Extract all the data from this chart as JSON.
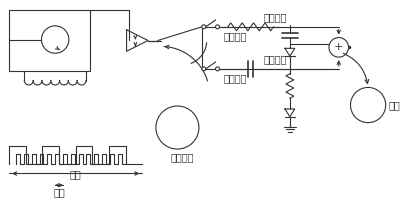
{
  "line_color": "#333333",
  "labels": {
    "low_freq": "低频",
    "high_freq": "高频",
    "low_sample": "低频采样",
    "high_sample": "高频采样",
    "fluid_noise": "流体噪声",
    "integral": "积分电路",
    "diff": "微分电路",
    "output": "输出"
  },
  "figsize": [
    4.02,
    2.14
  ],
  "dpi": 100
}
